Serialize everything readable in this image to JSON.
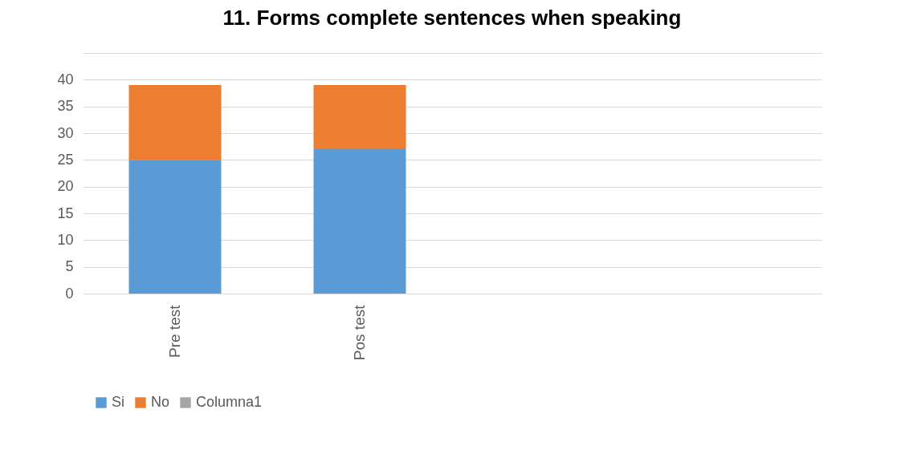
{
  "chart_data": {
    "type": "bar",
    "title": "11. Forms complete sentences when speaking",
    "categories": [
      "Pre test",
      "Pos test",
      null,
      null
    ],
    "stacked": true,
    "series": [
      {
        "name": "Si",
        "color": "#5b9bd5",
        "values": [
          25,
          27,
          null,
          null
        ]
      },
      {
        "name": "No",
        "color": "#ed7d31",
        "values": [
          14,
          12,
          null,
          null
        ]
      },
      {
        "name": "Columna1",
        "color": "#a5a5a5",
        "values": [
          null,
          null,
          null,
          null
        ]
      }
    ],
    "ylim": [
      0,
      45
    ],
    "yticks": [
      0,
      5,
      10,
      15,
      20,
      25,
      30,
      35,
      40,
      {
        "value": 45,
        "label": null
      }
    ],
    "grid": "y",
    "legend": "bottom"
  }
}
